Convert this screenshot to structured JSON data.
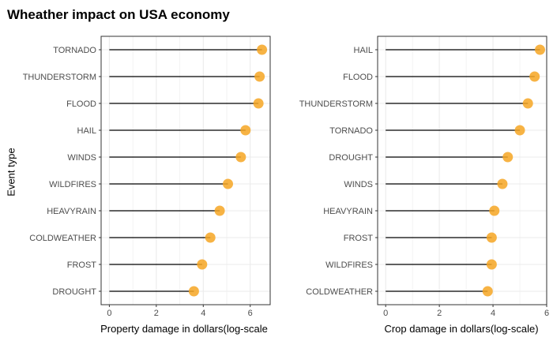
{
  "title": "Wheather impact on USA economy",
  "ylabel": "Event type",
  "colors": {
    "point": "#f6a623",
    "stem": "#000000",
    "grid": "#ebebeb",
    "frame": "#333333"
  },
  "chart_data": [
    {
      "type": "lollipop",
      "xlabel": "Property damage in dollars(log-scale",
      "xlim": [
        -0.35,
        6.85
      ],
      "xticks": [
        0,
        2,
        4,
        6
      ],
      "categories": [
        "TORNADO",
        "THUNDERSTORM",
        "FLOOD",
        "HAIL",
        "WINDS",
        "WILDFIRES",
        "HEAVYRAIN",
        "COLDWEATHER",
        "FROST",
        "DROUGHT"
      ],
      "values": [
        6.5,
        6.4,
        6.35,
        5.8,
        5.6,
        5.05,
        4.7,
        4.3,
        3.95,
        3.6
      ],
      "grid": true
    },
    {
      "type": "lollipop",
      "xlabel": "Crop damage in dollars(log-scale)",
      "xlim": [
        -0.3,
        6.0
      ],
      "xticks": [
        0,
        2,
        4,
        6
      ],
      "categories": [
        "HAIL",
        "FLOOD",
        "THUNDERSTORM",
        "TORNADO",
        "DROUGHT",
        "WINDS",
        "HEAVYRAIN",
        "FROST",
        "WILDFIRES",
        "COLDWEATHER"
      ],
      "values": [
        5.75,
        5.55,
        5.3,
        5.0,
        4.55,
        4.35,
        4.05,
        3.95,
        3.95,
        3.8
      ],
      "grid": true
    }
  ]
}
